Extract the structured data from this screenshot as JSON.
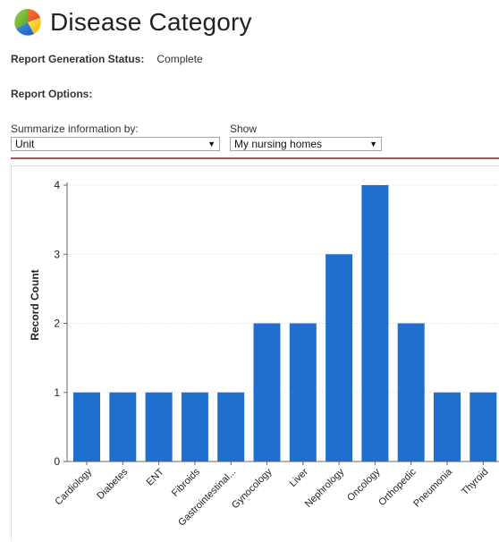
{
  "header": {
    "title": "Disease Category",
    "logo_icon": "pie-chart-logo-icon"
  },
  "status": {
    "label": "Report Generation Status:",
    "value": "Complete"
  },
  "options": {
    "label": "Report Options:",
    "summarize": {
      "label": "Summarize information by:",
      "value": "Unit"
    },
    "show": {
      "label": "Show",
      "value": "My nursing homes"
    }
  },
  "chart_data": {
    "type": "bar",
    "title": "",
    "xlabel": "",
    "ylabel": "Record Count",
    "ylim": [
      0,
      4
    ],
    "yticks": [
      0,
      1,
      2,
      3,
      4
    ],
    "grid": true,
    "bar_color": "#1f6fcf",
    "categories": [
      "Cardiology",
      "Diabetes",
      "ENT",
      "Fibroids",
      "Gastrointestinal...",
      "Gynocology",
      "Liver",
      "Nephrology",
      "Oncology",
      "Orthopedic",
      "Pneumonia",
      "Thyroid"
    ],
    "values": [
      1,
      1,
      1,
      1,
      1,
      2,
      2,
      3,
      4,
      2,
      1,
      1
    ]
  },
  "colors": {
    "accent_divider": "#a8554d",
    "bar": "#1f6fcf"
  }
}
